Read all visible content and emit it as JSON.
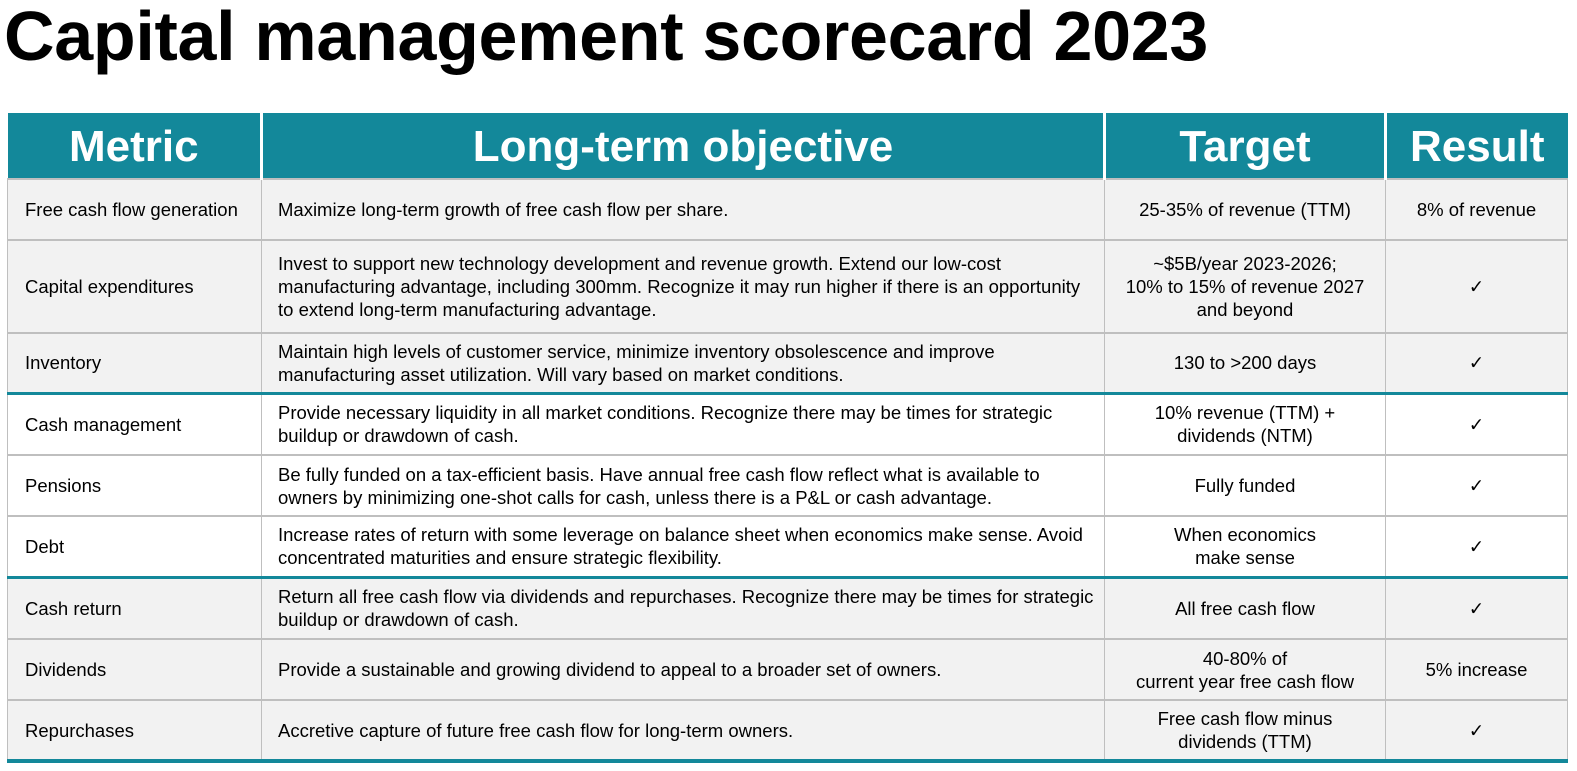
{
  "title": "Capital management scorecard 2023",
  "colors": {
    "accent": "#13889a",
    "shade": "#f2f2f2",
    "grid": "#bfbfbf"
  },
  "headers": {
    "metric": "Metric",
    "objective": "Long-term objective",
    "target": "Target",
    "result": "Result"
  },
  "rows": [
    {
      "metric": "Free cash flow generation",
      "objective": "Maximize long-term growth of free cash flow per share.",
      "target": "25-35% of revenue (TTM)",
      "result": "8% of revenue"
    },
    {
      "metric": "Capital expenditures",
      "objective": "Invest to support new technology development and revenue growth. Extend our low-cost manufacturing advantage, including 300mm. Recognize it may run higher if there is an opportunity to extend long-term manufacturing advantage.",
      "target": "~$5B/year 2023-2026;\n10% to 15% of revenue 2027\nand beyond",
      "result": "✓"
    },
    {
      "metric": "Inventory",
      "objective": "Maintain high levels of customer service, minimize inventory obsolescence and improve manufacturing asset utilization. Will vary based on market conditions.",
      "target": "130 to >200 days",
      "result": "✓"
    },
    {
      "metric": "Cash management",
      "objective": "Provide necessary liquidity in all market conditions. Recognize there may be times for strategic buildup or drawdown of cash.",
      "target": "10% revenue (TTM) +\ndividends (NTM)",
      "result": "✓"
    },
    {
      "metric": "Pensions",
      "objective": "Be fully funded on a tax-efficient basis. Have annual free cash flow reflect what is available to owners by minimizing one-shot calls for cash, unless there is a P&L or cash advantage.",
      "target": "Fully funded",
      "result": "✓"
    },
    {
      "metric": "Debt",
      "objective": "Increase rates of return with some leverage on balance sheet when economics make sense. Avoid concentrated maturities and ensure strategic flexibility.",
      "target": "When economics\nmake sense",
      "result": "✓"
    },
    {
      "metric": "Cash return",
      "objective": "Return all free cash flow via dividends and repurchases. Recognize there may be times for strategic buildup or drawdown of cash.",
      "target": "All free cash flow",
      "result": "✓"
    },
    {
      "metric": "Dividends",
      "objective": "Provide a sustainable and growing dividend to appeal to a broader set of owners.",
      "target": "40-80% of\ncurrent year free cash flow",
      "result": "5% increase"
    },
    {
      "metric": "Repurchases",
      "objective": "Accretive capture of future free cash flow for long-term owners.",
      "target": "Free cash flow minus\ndividends (TTM)",
      "result": "✓"
    }
  ]
}
